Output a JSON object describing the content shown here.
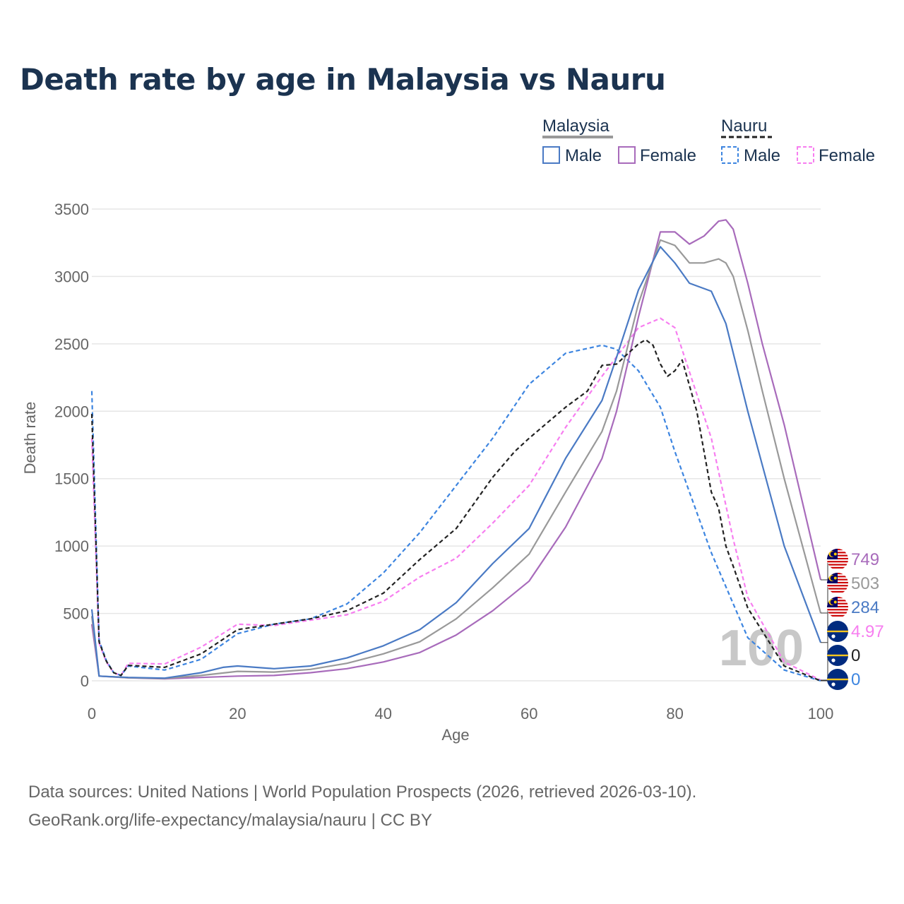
{
  "chart_data": {
    "type": "line",
    "title": "Death rate by age in Malaysia vs Nauru",
    "xlabel": "Age",
    "ylabel": "Death rate",
    "xlim": [
      0,
      100
    ],
    "ylim": [
      0,
      3500
    ],
    "x_ticks": [
      "0",
      "20",
      "40",
      "60",
      "80",
      "100"
    ],
    "y_ticks": [
      "0",
      "500",
      "1000",
      "1500",
      "2000",
      "2500",
      "3000",
      "3500"
    ],
    "grid": true,
    "legend_position": "top-right",
    "legend": {
      "groups": [
        {
          "country": "Malaysia",
          "items": [
            "Male",
            "Female"
          ]
        },
        {
          "country": "Nauru",
          "items": [
            "Male",
            "Female"
          ]
        }
      ]
    },
    "watermark": "100",
    "series": [
      {
        "name": "Malaysia Male",
        "country": "Malaysia",
        "sex": "Male",
        "style": "solid",
        "color": "#4a7ac4",
        "x": [
          0,
          1,
          5,
          10,
          15,
          18,
          20,
          25,
          30,
          35,
          40,
          45,
          50,
          55,
          60,
          65,
          70,
          72,
          75,
          78,
          80,
          82,
          85,
          87,
          90,
          92,
          95,
          100
        ],
        "y": [
          530,
          35,
          25,
          20,
          60,
          100,
          110,
          90,
          110,
          170,
          260,
          380,
          580,
          870,
          1130,
          1650,
          2080,
          2400,
          2900,
          3220,
          3100,
          2950,
          2890,
          2650,
          2000,
          1600,
          1000,
          284
        ],
        "end_label": "284"
      },
      {
        "name": "Malaysia Female",
        "country": "Malaysia",
        "sex": "Female",
        "style": "solid",
        "color": "#a86bbb",
        "x": [
          0,
          1,
          5,
          10,
          15,
          20,
          25,
          30,
          35,
          40,
          45,
          50,
          55,
          60,
          65,
          70,
          72,
          75,
          78,
          80,
          82,
          84,
          86,
          87,
          88,
          90,
          92,
          95,
          100
        ],
        "y": [
          420,
          35,
          22,
          15,
          25,
          35,
          40,
          60,
          90,
          140,
          210,
          340,
          520,
          740,
          1140,
          1650,
          2000,
          2700,
          3330,
          3330,
          3240,
          3300,
          3410,
          3420,
          3350,
          2950,
          2500,
          1900,
          749
        ],
        "end_label": "749"
      },
      {
        "name": "Malaysia Total",
        "country": "Malaysia",
        "sex": "Total",
        "style": "solid",
        "color": "#999999",
        "x": [
          0,
          1,
          5,
          10,
          15,
          20,
          25,
          30,
          35,
          40,
          45,
          50,
          55,
          60,
          65,
          70,
          72,
          75,
          78,
          80,
          82,
          84,
          86,
          87,
          88,
          90,
          92,
          95,
          100
        ],
        "y": [
          480,
          35,
          23,
          18,
          40,
          70,
          65,
          85,
          130,
          200,
          290,
          460,
          690,
          940,
          1400,
          1850,
          2150,
          2800,
          3270,
          3230,
          3100,
          3100,
          3130,
          3100,
          3000,
          2600,
          2150,
          1500,
          503
        ],
        "end_label": "503"
      },
      {
        "name": "Nauru Male",
        "country": "Nauru",
        "sex": "Male",
        "style": "dashed",
        "color": "#3d85e0",
        "x": [
          0,
          1,
          2,
          3,
          4,
          5,
          10,
          15,
          20,
          25,
          30,
          35,
          40,
          45,
          50,
          55,
          60,
          65,
          70,
          72,
          75,
          78,
          80,
          85,
          90,
          95,
          100
        ],
        "y": [
          2150,
          300,
          150,
          60,
          40,
          110,
          80,
          160,
          350,
          420,
          460,
          570,
          800,
          1100,
          1450,
          1800,
          2200,
          2430,
          2490,
          2460,
          2300,
          2030,
          1700,
          950,
          320,
          80,
          0
        ],
        "end_label": "0"
      },
      {
        "name": "Nauru Female",
        "country": "Nauru",
        "sex": "Female",
        "style": "dashed",
        "color": "#f77ef0",
        "x": [
          0,
          1,
          2,
          3,
          4,
          5,
          10,
          15,
          20,
          25,
          30,
          35,
          40,
          45,
          50,
          55,
          60,
          65,
          70,
          75,
          78,
          80,
          85,
          88,
          90,
          95,
          100
        ],
        "y": [
          1800,
          280,
          140,
          60,
          40,
          130,
          125,
          250,
          420,
          410,
          450,
          490,
          590,
          770,
          910,
          1170,
          1450,
          1880,
          2260,
          2620,
          2690,
          2620,
          1800,
          1050,
          620,
          140,
          5
        ],
        "end_label": "4.97"
      },
      {
        "name": "Nauru Total",
        "country": "Nauru",
        "sex": "Total",
        "style": "dashed",
        "color": "#222222",
        "x": [
          0,
          1,
          2,
          3,
          4,
          5,
          10,
          15,
          20,
          25,
          30,
          35,
          40,
          45,
          50,
          55,
          58,
          60,
          65,
          68,
          70,
          72,
          75,
          76,
          77,
          78,
          79,
          80,
          81,
          83,
          85,
          86,
          87,
          88,
          90,
          95,
          100
        ],
        "y": [
          1980,
          290,
          145,
          60,
          40,
          115,
          100,
          200,
          380,
          420,
          460,
          520,
          650,
          900,
          1130,
          1510,
          1700,
          1800,
          2030,
          2150,
          2340,
          2350,
          2500,
          2530,
          2490,
          2350,
          2260,
          2300,
          2380,
          2000,
          1400,
          1280,
          1000,
          850,
          540,
          110,
          0
        ],
        "end_label": "0"
      }
    ],
    "end_labels": [
      {
        "series": "Malaysia Female",
        "text": "749",
        "flag": "Malaysia"
      },
      {
        "series": "Malaysia Total",
        "text": "503",
        "flag": "Malaysia"
      },
      {
        "series": "Malaysia Male",
        "text": "284",
        "flag": "Malaysia"
      },
      {
        "series": "Nauru Female",
        "text": "4.97",
        "flag": "Nauru"
      },
      {
        "series": "Nauru Total",
        "text": "0",
        "flag": "Nauru"
      },
      {
        "series": "Nauru Male",
        "text": "0",
        "flag": "Nauru"
      }
    ]
  },
  "source": {
    "line1": "Data sources: United Nations | World Population Prospects (2026, retrieved 2026-03-10).",
    "line2": "GeoRank.org/life-expectancy/malaysia/nauru | CC BY"
  }
}
